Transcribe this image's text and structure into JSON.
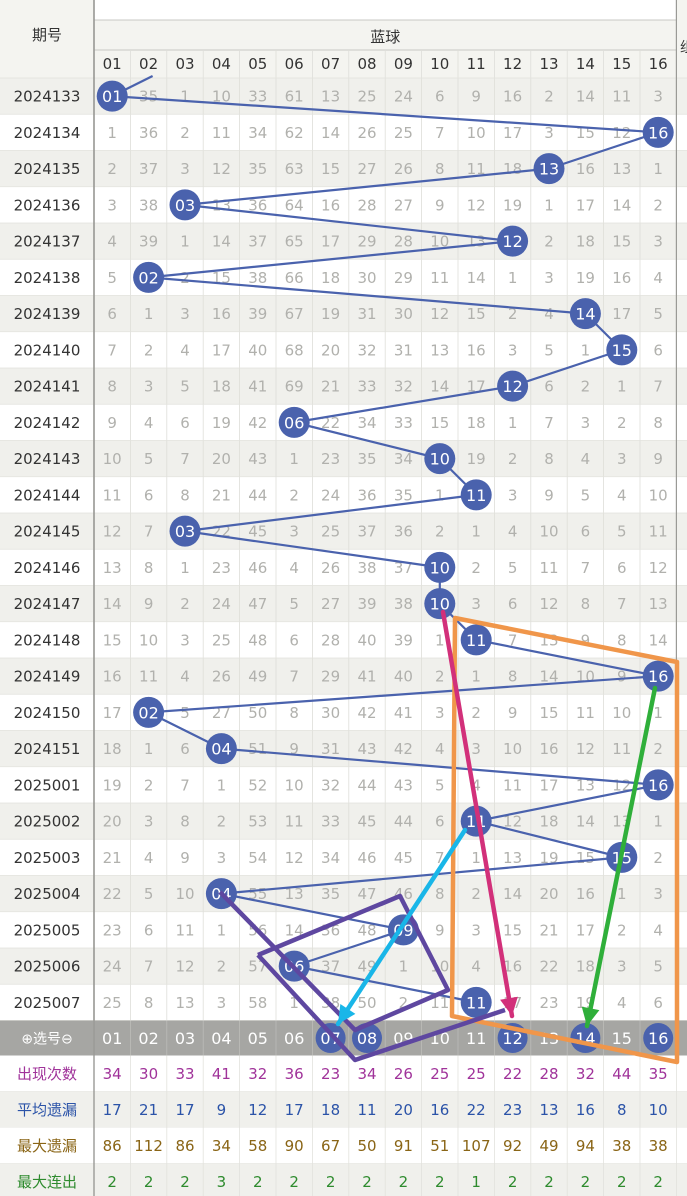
{
  "header": {
    "period_label": "期号",
    "blue_label": "蓝球",
    "col_labels": [
      "01",
      "02",
      "03",
      "04",
      "05",
      "06",
      "07",
      "08",
      "09",
      "10",
      "11",
      "12",
      "13",
      "14",
      "15",
      "16"
    ]
  },
  "rows": [
    {
      "period": "2024133",
      "values": [
        "01",
        "35",
        "1",
        "10",
        "33",
        "61",
        "13",
        "25",
        "24",
        "6",
        "9",
        "16",
        "2",
        "14",
        "11",
        "3"
      ],
      "hit": 1
    },
    {
      "period": "2024134",
      "values": [
        "1",
        "36",
        "2",
        "11",
        "34",
        "62",
        "14",
        "26",
        "25",
        "7",
        "10",
        "17",
        "3",
        "15",
        "12",
        "16"
      ],
      "hit": 16
    },
    {
      "period": "2024135",
      "values": [
        "2",
        "37",
        "3",
        "12",
        "35",
        "63",
        "15",
        "27",
        "26",
        "8",
        "11",
        "18",
        "13",
        "16",
        "13",
        "1"
      ],
      "hit": 13
    },
    {
      "period": "2024136",
      "values": [
        "3",
        "38",
        "03",
        "13",
        "36",
        "64",
        "16",
        "28",
        "27",
        "9",
        "12",
        "19",
        "1",
        "17",
        "14",
        "2"
      ],
      "hit": 3
    },
    {
      "period": "2024137",
      "values": [
        "4",
        "39",
        "1",
        "14",
        "37",
        "65",
        "17",
        "29",
        "28",
        "10",
        "13",
        "12",
        "2",
        "18",
        "15",
        "3"
      ],
      "hit": 12
    },
    {
      "period": "2024138",
      "values": [
        "5",
        "02",
        "2",
        "15",
        "38",
        "66",
        "18",
        "30",
        "29",
        "11",
        "14",
        "1",
        "3",
        "19",
        "16",
        "4"
      ],
      "hit": 2
    },
    {
      "period": "2024139",
      "values": [
        "6",
        "1",
        "3",
        "16",
        "39",
        "67",
        "19",
        "31",
        "30",
        "12",
        "15",
        "2",
        "4",
        "14",
        "17",
        "5"
      ],
      "hit": 14
    },
    {
      "period": "2024140",
      "values": [
        "7",
        "2",
        "4",
        "17",
        "40",
        "68",
        "20",
        "32",
        "31",
        "13",
        "16",
        "3",
        "5",
        "1",
        "15",
        "6"
      ],
      "hit": 15
    },
    {
      "period": "2024141",
      "values": [
        "8",
        "3",
        "5",
        "18",
        "41",
        "69",
        "21",
        "33",
        "32",
        "14",
        "17",
        "12",
        "6",
        "2",
        "1",
        "7"
      ],
      "hit": 12
    },
    {
      "period": "2024142",
      "values": [
        "9",
        "4",
        "6",
        "19",
        "42",
        "06",
        "22",
        "34",
        "33",
        "15",
        "18",
        "1",
        "7",
        "3",
        "2",
        "8"
      ],
      "hit": 6
    },
    {
      "period": "2024143",
      "values": [
        "10",
        "5",
        "7",
        "20",
        "43",
        "1",
        "23",
        "35",
        "34",
        "10",
        "19",
        "2",
        "8",
        "4",
        "3",
        "9"
      ],
      "hit": 10
    },
    {
      "period": "2024144",
      "values": [
        "11",
        "6",
        "8",
        "21",
        "44",
        "2",
        "24",
        "36",
        "35",
        "1",
        "11",
        "3",
        "9",
        "5",
        "4",
        "10"
      ],
      "hit": 11
    },
    {
      "period": "2024145",
      "values": [
        "12",
        "7",
        "03",
        "22",
        "45",
        "3",
        "25",
        "37",
        "36",
        "2",
        "1",
        "4",
        "10",
        "6",
        "5",
        "11"
      ],
      "hit": 3
    },
    {
      "period": "2024146",
      "values": [
        "13",
        "8",
        "1",
        "23",
        "46",
        "4",
        "26",
        "38",
        "37",
        "10",
        "2",
        "5",
        "11",
        "7",
        "6",
        "12"
      ],
      "hit": 10
    },
    {
      "period": "2024147",
      "values": [
        "14",
        "9",
        "2",
        "24",
        "47",
        "5",
        "27",
        "39",
        "38",
        "10",
        "3",
        "6",
        "12",
        "8",
        "7",
        "13"
      ],
      "hit": 10
    },
    {
      "period": "2024148",
      "values": [
        "15",
        "10",
        "3",
        "25",
        "48",
        "6",
        "28",
        "40",
        "39",
        "1",
        "11",
        "7",
        "13",
        "9",
        "8",
        "14"
      ],
      "hit": 11
    },
    {
      "period": "2024149",
      "values": [
        "16",
        "11",
        "4",
        "26",
        "49",
        "7",
        "29",
        "41",
        "40",
        "2",
        "1",
        "8",
        "14",
        "10",
        "9",
        "16"
      ],
      "hit": 16
    },
    {
      "period": "2024150",
      "values": [
        "17",
        "02",
        "5",
        "27",
        "50",
        "8",
        "30",
        "42",
        "41",
        "3",
        "2",
        "9",
        "15",
        "11",
        "10",
        "1"
      ],
      "hit": 2
    },
    {
      "period": "2024151",
      "values": [
        "18",
        "1",
        "6",
        "04",
        "51",
        "9",
        "31",
        "43",
        "42",
        "4",
        "3",
        "10",
        "16",
        "12",
        "11",
        "2"
      ],
      "hit": 4
    },
    {
      "period": "2025001",
      "values": [
        "19",
        "2",
        "7",
        "1",
        "52",
        "10",
        "32",
        "44",
        "43",
        "5",
        "4",
        "11",
        "17",
        "13",
        "12",
        "16"
      ],
      "hit": 16
    },
    {
      "period": "2025002",
      "values": [
        "20",
        "3",
        "8",
        "2",
        "53",
        "11",
        "33",
        "45",
        "44",
        "6",
        "11",
        "12",
        "18",
        "14",
        "13",
        "1"
      ],
      "hit": 11
    },
    {
      "period": "2025003",
      "values": [
        "21",
        "4",
        "9",
        "3",
        "54",
        "12",
        "34",
        "46",
        "45",
        "7",
        "1",
        "13",
        "19",
        "15",
        "15",
        "2"
      ],
      "hit": 15
    },
    {
      "period": "2025004",
      "values": [
        "22",
        "5",
        "10",
        "04",
        "55",
        "13",
        "35",
        "47",
        "46",
        "8",
        "2",
        "14",
        "20",
        "16",
        "1",
        "3"
      ],
      "hit": 4
    },
    {
      "period": "2025005",
      "values": [
        "23",
        "6",
        "11",
        "1",
        "56",
        "14",
        "36",
        "48",
        "09",
        "9",
        "3",
        "15",
        "21",
        "17",
        "2",
        "4"
      ],
      "hit": 9
    },
    {
      "period": "2025006",
      "values": [
        "24",
        "7",
        "12",
        "2",
        "57",
        "06",
        "37",
        "49",
        "1",
        "10",
        "4",
        "16",
        "22",
        "18",
        "3",
        "5"
      ],
      "hit": 6
    },
    {
      "period": "2025007",
      "values": [
        "25",
        "8",
        "13",
        "3",
        "58",
        "1",
        "38",
        "50",
        "2",
        "11",
        "11",
        "17",
        "23",
        "19",
        "4",
        "6"
      ],
      "hit": 11
    }
  ],
  "select_row": {
    "label": "⊕选号⊖",
    "values": [
      "01",
      "02",
      "03",
      "04",
      "05",
      "06",
      "07",
      "08",
      "09",
      "10",
      "11",
      "12",
      "13",
      "14",
      "15",
      "16"
    ],
    "selected": [
      7,
      8,
      12,
      14,
      16
    ]
  },
  "stats": [
    {
      "label": "出现次数",
      "color": "#a0339a",
      "values": [
        "34",
        "30",
        "33",
        "41",
        "32",
        "36",
        "23",
        "34",
        "26",
        "25",
        "25",
        "22",
        "28",
        "32",
        "44",
        "35"
      ]
    },
    {
      "label": "平均遗漏",
      "color": "#2b53a8",
      "values": [
        "17",
        "21",
        "17",
        "9",
        "12",
        "17",
        "18",
        "11",
        "20",
        "16",
        "22",
        "23",
        "13",
        "16",
        "8",
        "10"
      ]
    },
    {
      "label": "最大遗漏",
      "color": "#8a6516",
      "values": [
        "86",
        "112",
        "86",
        "34",
        "58",
        "90",
        "67",
        "50",
        "91",
        "51",
        "107",
        "92",
        "49",
        "94",
        "38",
        "38"
      ]
    },
    {
      "label": "最大连出",
      "color": "#2e8b2e",
      "values": [
        "2",
        "2",
        "2",
        "3",
        "2",
        "2",
        "2",
        "2",
        "2",
        "2",
        "1",
        "2",
        "2",
        "2",
        "2",
        "2"
      ]
    }
  ],
  "colors": {
    "ball": "#4a62ad",
    "line": "#4a62ad",
    "orange": "#f0964a",
    "magenta": "#d2307a",
    "cyan": "#19b6e8",
    "green": "#2faf3a",
    "purple": "#5e47a0"
  }
}
